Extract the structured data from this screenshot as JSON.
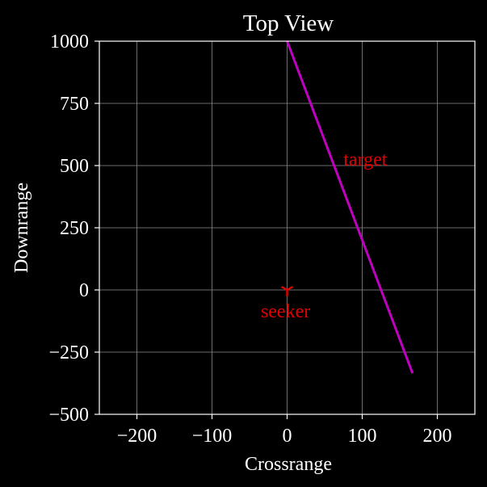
{
  "chart_data": {
    "type": "line",
    "title": "Top View",
    "xlabel": "Crossrange",
    "ylabel": "Downrange",
    "xlim": [
      -250,
      250
    ],
    "ylim": [
      -500,
      1000
    ],
    "xticks": [
      -200,
      -100,
      0,
      100,
      200
    ],
    "yticks": [
      -500,
      -250,
      0,
      250,
      500,
      750,
      1000
    ],
    "xtick_labels": [
      "−200",
      "−100",
      "0",
      "100",
      "200"
    ],
    "ytick_labels": [
      "−500",
      "−250",
      "0",
      "250",
      "500",
      "750",
      "1000"
    ],
    "grid": true,
    "background_color": "#000000",
    "foreground_color": "#ffffff",
    "grid_color": "#808080",
    "series": [
      {
        "name": "target",
        "color": "#c000c0",
        "x": [
          0,
          167
        ],
        "y": [
          1000,
          -335
        ]
      }
    ],
    "markers": [
      {
        "name": "seeker",
        "marker": "tri_down",
        "color": "#e00000",
        "x": 0,
        "y": 0
      }
    ],
    "annotations": [
      {
        "text": "target",
        "x": 75,
        "y": 500,
        "color": "#e00000"
      },
      {
        "text": "seeker",
        "x": -35,
        "y": -110,
        "color": "#e00000"
      }
    ]
  }
}
